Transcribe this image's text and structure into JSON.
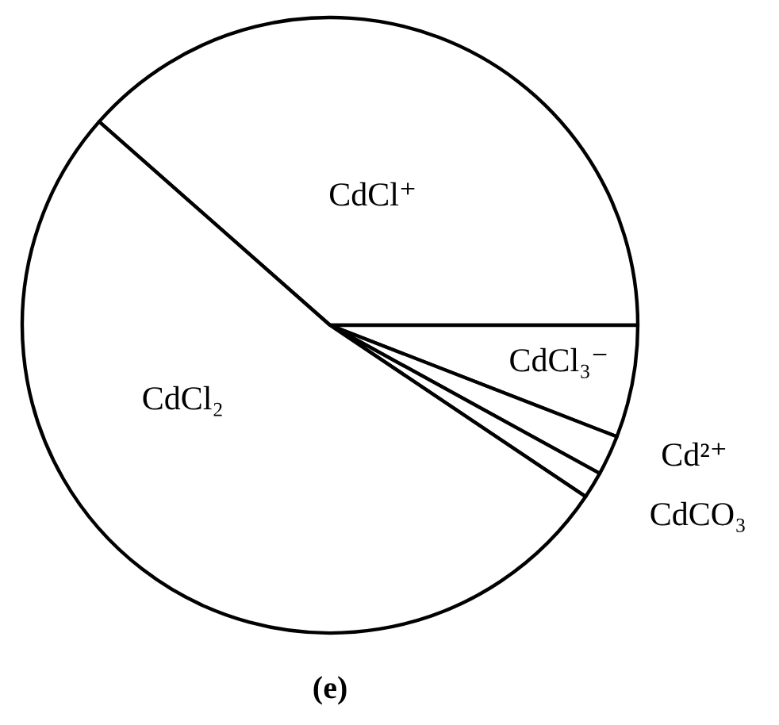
{
  "chart_data": {
    "type": "pie",
    "title": "(e)",
    "categories": [
      "CdCl⁺",
      "CdCl₃⁻",
      "Cd²⁺",
      "CdCO₃",
      "CdCl₂"
    ],
    "values": [
      38.5,
      5.9,
      2.1,
      1.4,
      52.1
    ],
    "colors": [
      "#ffffff",
      "#ffffff",
      "#ffffff",
      "#ffffff",
      "#ffffff"
    ]
  }
}
